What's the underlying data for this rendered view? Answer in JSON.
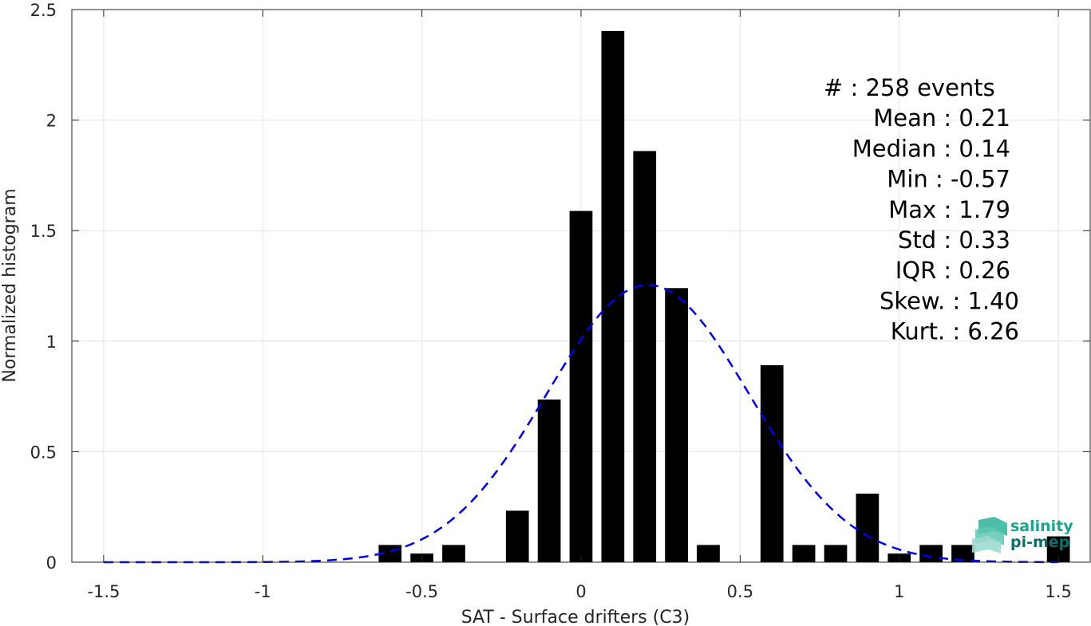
{
  "chart_data": {
    "type": "bar",
    "xlabel": "SAT - Surface drifters (C3)",
    "ylabel": "Normalized histogram",
    "xlim": [
      -1.6,
      1.6
    ],
    "ylim": [
      0,
      2.5
    ],
    "xticks": [
      "-1.5",
      "-1",
      "-0.5",
      "0",
      "0.5",
      "1",
      "1.5"
    ],
    "yticks": [
      "0",
      "0.5",
      "1",
      "1.5",
      "2",
      "2.5"
    ],
    "grid": true,
    "bar_color": "#000000",
    "bin_width": 0.1,
    "bars": [
      {
        "x": -0.6,
        "y": 0.078
      },
      {
        "x": -0.5,
        "y": 0.039
      },
      {
        "x": -0.4,
        "y": 0.078
      },
      {
        "x": -0.2,
        "y": 0.233
      },
      {
        "x": -0.1,
        "y": 0.736
      },
      {
        "x": 0.0,
        "y": 1.589
      },
      {
        "x": 0.1,
        "y": 2.403
      },
      {
        "x": 0.2,
        "y": 1.86
      },
      {
        "x": 0.3,
        "y": 1.24
      },
      {
        "x": 0.4,
        "y": 0.078
      },
      {
        "x": 0.6,
        "y": 0.891
      },
      {
        "x": 0.7,
        "y": 0.078
      },
      {
        "x": 0.8,
        "y": 0.078
      },
      {
        "x": 0.9,
        "y": 0.31
      },
      {
        "x": 1.0,
        "y": 0.039
      },
      {
        "x": 1.1,
        "y": 0.078
      },
      {
        "x": 1.2,
        "y": 0.078
      },
      {
        "x": 1.5,
        "y": 0.117
      }
    ],
    "fit_curve": {
      "style": "dashed",
      "color": "#0000ee",
      "mean": 0.21,
      "std": 0.318,
      "x_range": [
        -1.5,
        1.5
      ]
    },
    "stats": [
      "#  : 258 events",
      "Mean : 0.21",
      "Median : 0.14",
      "Min : -0.57",
      "Max : 1.79",
      "Std : 0.33",
      "IQR : 0.26",
      "Skew. : 1.40",
      "Kurt. : 6.26"
    ]
  },
  "logo": {
    "line1": "salinity",
    "line2": "pi-mep",
    "color1": "#1aa58c",
    "color2": "#0f6e6a"
  }
}
